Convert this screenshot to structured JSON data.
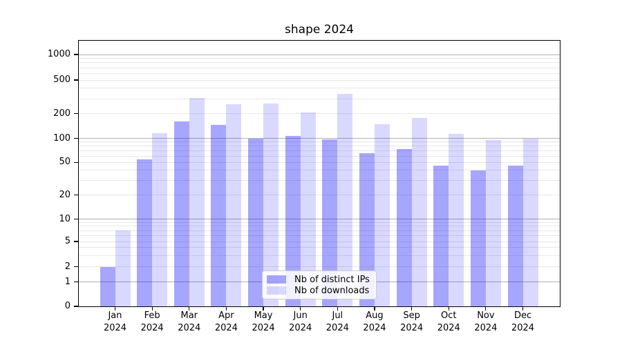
{
  "chart_data": {
    "type": "bar",
    "title": "shape 2024",
    "categories": [
      {
        "month": "Jan",
        "year": "2024"
      },
      {
        "month": "Feb",
        "year": "2024"
      },
      {
        "month": "Mar",
        "year": "2024"
      },
      {
        "month": "Apr",
        "year": "2024"
      },
      {
        "month": "May",
        "year": "2024"
      },
      {
        "month": "Jun",
        "year": "2024"
      },
      {
        "month": "Jul",
        "year": "2024"
      },
      {
        "month": "Aug",
        "year": "2024"
      },
      {
        "month": "Sep",
        "year": "2024"
      },
      {
        "month": "Oct",
        "year": "2024"
      },
      {
        "month": "Nov",
        "year": "2024"
      },
      {
        "month": "Dec",
        "year": "2024"
      }
    ],
    "series": [
      {
        "name": "Nb of distinct IPs",
        "color": "rgba(0,0,255,0.35)",
        "values": [
          2,
          54,
          160,
          145,
          100,
          107,
          97,
          65,
          73,
          46,
          40,
          46
        ]
      },
      {
        "name": "Nb of downloads",
        "color": "rgba(0,0,255,0.15)",
        "values": [
          7,
          115,
          305,
          260,
          262,
          205,
          340,
          148,
          178,
          113,
          96,
          100
        ]
      }
    ],
    "yscale": "symlog",
    "yticks": [
      0,
      1,
      2,
      5,
      10,
      20,
      50,
      100,
      200,
      500,
      1000
    ],
    "ylim": [
      0,
      1450
    ],
    "grid": true,
    "legend_position": "lower center",
    "colors": {
      "grid_major": "#b0b0b0",
      "grid_minor": "#e7e7e7",
      "spine": "#000000",
      "legend_border": "#cccccc"
    }
  }
}
